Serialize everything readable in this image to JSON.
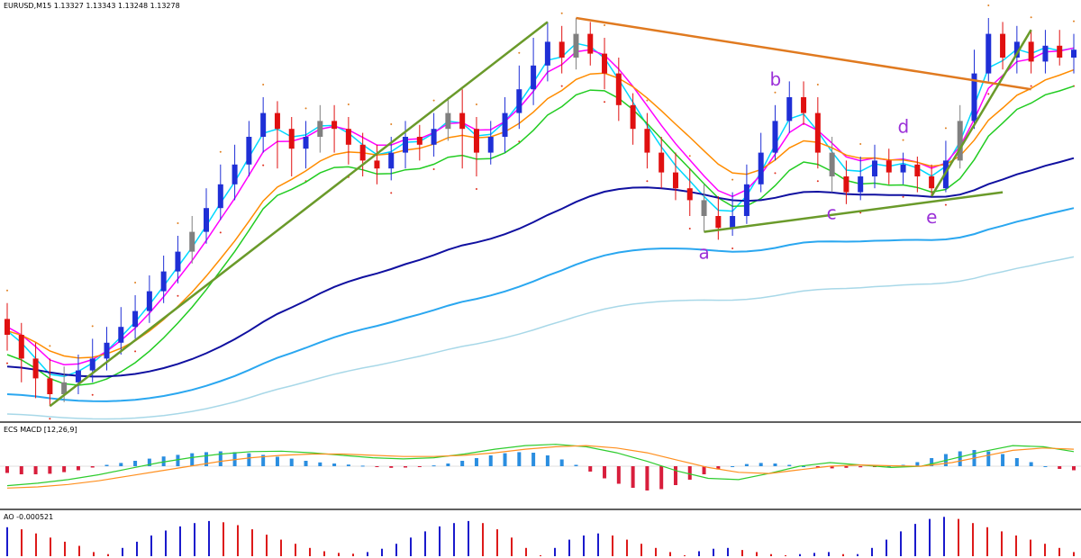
{
  "header": {
    "symbol_line": "EURUSD,M15 1.13327 1.13343 1.13248 1.13278"
  },
  "panes": {
    "macd_label": "ECS MACD [12,26,9]",
    "ao_label": "AO -0.000521"
  },
  "wave_labels": [
    "a",
    "b",
    "c",
    "d",
    "e"
  ],
  "colors": {
    "bull_candle": "#1f2fd6",
    "bear_candle": "#e01010",
    "neutral_candle": "#808080",
    "ema_cyan": "#00d8ff",
    "ema_magenta": "#ff00ff",
    "ema_green": "#22cc22",
    "ema_orange": "#ff8c00",
    "ema_navy": "#1010a0",
    "ema_lightblue": "#2aa7f0",
    "ema_pale": "#a8d8e8",
    "trendline_green": "#6a9a2a",
    "trendline_orange": "#e07a20",
    "macd_pos": "#2a8ee0",
    "macd_neg": "#d81e3c",
    "macd_fast": "#2ecc2e",
    "macd_slow": "#ff9020",
    "ao_up": "#1a1acc",
    "ao_down": "#dd1a1a",
    "wave_label": "#9b30d8"
  },
  "chart_data": [
    {
      "type": "candlestick",
      "title": "EURUSD,M15",
      "ohlc_last": {
        "open": 1.13327,
        "high": 1.13343,
        "low": 1.13248,
        "close": 1.13278
      },
      "candles": [
        {
          "o": 0.24,
          "c": 0.2,
          "h": 0.28,
          "l": 0.16
        },
        {
          "o": 0.2,
          "c": 0.14,
          "h": 0.23,
          "l": 0.08
        },
        {
          "o": 0.14,
          "c": 0.09,
          "h": 0.18,
          "l": 0.04
        },
        {
          "o": 0.09,
          "c": 0.05,
          "h": 0.14,
          "l": 0.02
        },
        {
          "o": 0.05,
          "c": 0.08,
          "h": 0.12,
          "l": 0.03
        },
        {
          "o": 0.08,
          "c": 0.11,
          "h": 0.15,
          "l": 0.05
        },
        {
          "o": 0.11,
          "c": 0.14,
          "h": 0.19,
          "l": 0.08
        },
        {
          "o": 0.14,
          "c": 0.18,
          "h": 0.22,
          "l": 0.11
        },
        {
          "o": 0.18,
          "c": 0.22,
          "h": 0.27,
          "l": 0.15
        },
        {
          "o": 0.22,
          "c": 0.26,
          "h": 0.3,
          "l": 0.19
        },
        {
          "o": 0.26,
          "c": 0.31,
          "h": 0.35,
          "l": 0.23
        },
        {
          "o": 0.31,
          "c": 0.36,
          "h": 0.4,
          "l": 0.28
        },
        {
          "o": 0.36,
          "c": 0.41,
          "h": 0.45,
          "l": 0.33
        },
        {
          "o": 0.41,
          "c": 0.46,
          "h": 0.5,
          "l": 0.38
        },
        {
          "o": 0.46,
          "c": 0.52,
          "h": 0.57,
          "l": 0.43
        },
        {
          "o": 0.52,
          "c": 0.58,
          "h": 0.63,
          "l": 0.49
        },
        {
          "o": 0.58,
          "c": 0.63,
          "h": 0.68,
          "l": 0.54
        },
        {
          "o": 0.63,
          "c": 0.7,
          "h": 0.74,
          "l": 0.6
        },
        {
          "o": 0.7,
          "c": 0.76,
          "h": 0.8,
          "l": 0.66
        },
        {
          "o": 0.76,
          "c": 0.72,
          "h": 0.79,
          "l": 0.62
        },
        {
          "o": 0.72,
          "c": 0.67,
          "h": 0.75,
          "l": 0.6
        },
        {
          "o": 0.67,
          "c": 0.7,
          "h": 0.74,
          "l": 0.62
        },
        {
          "o": 0.7,
          "c": 0.74,
          "h": 0.78,
          "l": 0.66
        },
        {
          "o": 0.74,
          "c": 0.72,
          "h": 0.78,
          "l": 0.66
        },
        {
          "o": 0.72,
          "c": 0.68,
          "h": 0.75,
          "l": 0.63
        },
        {
          "o": 0.68,
          "c": 0.64,
          "h": 0.71,
          "l": 0.6
        },
        {
          "o": 0.64,
          "c": 0.62,
          "h": 0.68,
          "l": 0.58
        },
        {
          "o": 0.62,
          "c": 0.66,
          "h": 0.7,
          "l": 0.59
        },
        {
          "o": 0.66,
          "c": 0.7,
          "h": 0.74,
          "l": 0.62
        },
        {
          "o": 0.7,
          "c": 0.68,
          "h": 0.73,
          "l": 0.64
        },
        {
          "o": 0.68,
          "c": 0.72,
          "h": 0.76,
          "l": 0.65
        },
        {
          "o": 0.72,
          "c": 0.76,
          "h": 0.8,
          "l": 0.69
        },
        {
          "o": 0.76,
          "c": 0.72,
          "h": 0.82,
          "l": 0.62
        },
        {
          "o": 0.72,
          "c": 0.66,
          "h": 0.75,
          "l": 0.6
        },
        {
          "o": 0.66,
          "c": 0.7,
          "h": 0.74,
          "l": 0.63
        },
        {
          "o": 0.7,
          "c": 0.76,
          "h": 0.8,
          "l": 0.66
        },
        {
          "o": 0.76,
          "c": 0.82,
          "h": 0.88,
          "l": 0.72
        },
        {
          "o": 0.82,
          "c": 0.88,
          "h": 0.95,
          "l": 0.78
        },
        {
          "o": 0.88,
          "c": 0.94,
          "h": 0.99,
          "l": 0.84
        },
        {
          "o": 0.94,
          "c": 0.9,
          "h": 0.98,
          "l": 0.86
        },
        {
          "o": 0.9,
          "c": 0.96,
          "h": 1.0,
          "l": 0.87
        },
        {
          "o": 0.96,
          "c": 0.91,
          "h": 0.99,
          "l": 0.88
        },
        {
          "o": 0.91,
          "c": 0.86,
          "h": 0.95,
          "l": 0.82
        },
        {
          "o": 0.86,
          "c": 0.78,
          "h": 0.9,
          "l": 0.74
        },
        {
          "o": 0.78,
          "c": 0.72,
          "h": 0.81,
          "l": 0.68
        },
        {
          "o": 0.72,
          "c": 0.66,
          "h": 0.76,
          "l": 0.62
        },
        {
          "o": 0.66,
          "c": 0.61,
          "h": 0.7,
          "l": 0.57
        },
        {
          "o": 0.61,
          "c": 0.57,
          "h": 0.66,
          "l": 0.54
        },
        {
          "o": 0.57,
          "c": 0.54,
          "h": 0.62,
          "l": 0.5
        },
        {
          "o": 0.54,
          "c": 0.5,
          "h": 0.58,
          "l": 0.46
        },
        {
          "o": 0.5,
          "c": 0.47,
          "h": 0.55,
          "l": 0.44
        },
        {
          "o": 0.47,
          "c": 0.5,
          "h": 0.56,
          "l": 0.45
        },
        {
          "o": 0.5,
          "c": 0.58,
          "h": 0.63,
          "l": 0.48
        },
        {
          "o": 0.58,
          "c": 0.66,
          "h": 0.71,
          "l": 0.56
        },
        {
          "o": 0.66,
          "c": 0.74,
          "h": 0.78,
          "l": 0.64
        },
        {
          "o": 0.74,
          "c": 0.8,
          "h": 0.84,
          "l": 0.71
        },
        {
          "o": 0.8,
          "c": 0.76,
          "h": 0.84,
          "l": 0.73
        },
        {
          "o": 0.76,
          "c": 0.66,
          "h": 0.8,
          "l": 0.62
        },
        {
          "o": 0.66,
          "c": 0.6,
          "h": 0.7,
          "l": 0.56
        },
        {
          "o": 0.6,
          "c": 0.56,
          "h": 0.64,
          "l": 0.53
        },
        {
          "o": 0.56,
          "c": 0.6,
          "h": 0.65,
          "l": 0.54
        },
        {
          "o": 0.6,
          "c": 0.64,
          "h": 0.68,
          "l": 0.57
        },
        {
          "o": 0.64,
          "c": 0.61,
          "h": 0.67,
          "l": 0.58
        },
        {
          "o": 0.61,
          "c": 0.63,
          "h": 0.66,
          "l": 0.58
        },
        {
          "o": 0.63,
          "c": 0.6,
          "h": 0.65,
          "l": 0.56
        },
        {
          "o": 0.6,
          "c": 0.57,
          "h": 0.63,
          "l": 0.55
        },
        {
          "o": 0.57,
          "c": 0.64,
          "h": 0.69,
          "l": 0.56
        },
        {
          "o": 0.64,
          "c": 0.74,
          "h": 0.78,
          "l": 0.62
        },
        {
          "o": 0.74,
          "c": 0.86,
          "h": 0.92,
          "l": 0.72
        },
        {
          "o": 0.86,
          "c": 0.96,
          "h": 1.0,
          "l": 0.84
        },
        {
          "o": 0.96,
          "c": 0.9,
          "h": 0.99,
          "l": 0.87
        },
        {
          "o": 0.9,
          "c": 0.94,
          "h": 0.98,
          "l": 0.86
        },
        {
          "o": 0.94,
          "c": 0.89,
          "h": 0.97,
          "l": 0.86
        },
        {
          "o": 0.89,
          "c": 0.93,
          "h": 0.97,
          "l": 0.86
        },
        {
          "o": 0.93,
          "c": 0.9,
          "h": 0.97,
          "l": 0.88
        },
        {
          "o": 0.9,
          "c": 0.92,
          "h": 0.96,
          "l": 0.86
        }
      ],
      "price_range": [
        0,
        1
      ],
      "waves": [
        {
          "label": "a",
          "bar": 49
        },
        {
          "label": "b",
          "bar": 54
        },
        {
          "label": "c",
          "bar": 58
        },
        {
          "label": "d",
          "bar": 63
        },
        {
          "label": "e",
          "bar": 65
        }
      ]
    },
    {
      "type": "bar",
      "title": "ECS MACD [12,26,9]",
      "values": [
        -0.25,
        -0.3,
        -0.3,
        -0.28,
        -0.22,
        -0.15,
        -0.05,
        0.05,
        0.12,
        0.2,
        0.28,
        0.36,
        0.42,
        0.48,
        0.52,
        0.55,
        0.52,
        0.48,
        0.42,
        0.35,
        0.28,
        0.2,
        0.14,
        0.1,
        0.06,
        0.02,
        -0.02,
        -0.06,
        -0.05,
        -0.02,
        0.03,
        0.1,
        0.2,
        0.3,
        0.4,
        0.48,
        0.52,
        0.5,
        0.4,
        0.25,
        0.05,
        -0.2,
        -0.45,
        -0.65,
        -0.8,
        -0.9,
        -0.85,
        -0.7,
        -0.5,
        -0.3,
        -0.12,
        0.0,
        0.08,
        0.12,
        0.1,
        0.05,
        0.0,
        -0.05,
        -0.08,
        -0.06,
        -0.04,
        -0.02,
        0.0,
        0.05,
        0.15,
        0.3,
        0.45,
        0.55,
        0.6,
        0.55,
        0.45,
        0.3,
        0.15,
        0.0,
        -0.1,
        -0.15
      ],
      "series": [
        {
          "name": "fast",
          "values": [
            -0.8,
            -0.7,
            -0.55,
            -0.35,
            -0.1,
            0.15,
            0.35,
            0.5,
            0.6,
            0.62,
            0.55,
            0.45,
            0.35,
            0.3,
            0.35,
            0.5,
            0.7,
            0.85,
            0.9,
            0.8,
            0.55,
            0.2,
            -0.2,
            -0.5,
            -0.55,
            -0.3,
            0.0,
            0.15,
            0.05,
            -0.05,
            0.0,
            0.3,
            0.6,
            0.85,
            0.8,
            0.6
          ]
        },
        {
          "name": "slow",
          "values": [
            -0.9,
            -0.85,
            -0.75,
            -0.6,
            -0.4,
            -0.2,
            0.0,
            0.2,
            0.35,
            0.45,
            0.5,
            0.5,
            0.45,
            0.4,
            0.4,
            0.45,
            0.55,
            0.7,
            0.8,
            0.85,
            0.75,
            0.55,
            0.25,
            -0.05,
            -0.25,
            -0.3,
            -0.15,
            0.0,
            0.05,
            0.02,
            0.0,
            0.15,
            0.4,
            0.65,
            0.75,
            0.7
          ]
        }
      ]
    },
    {
      "type": "bar",
      "title": "AO -0.000521",
      "values": [
        -0.7,
        -0.65,
        -0.55,
        -0.45,
        -0.35,
        -0.25,
        -0.1,
        0.05,
        0.2,
        0.35,
        0.5,
        0.62,
        0.72,
        0.8,
        0.85,
        0.82,
        0.75,
        0.65,
        0.52,
        0.4,
        0.3,
        0.2,
        0.12,
        0.08,
        0.06,
        0.1,
        0.18,
        0.3,
        0.45,
        0.6,
        0.72,
        0.8,
        0.85,
        0.8,
        0.65,
        0.45,
        0.2,
        0.0,
        -0.2,
        -0.4,
        -0.5,
        -0.55,
        -0.5,
        -0.4,
        -0.3,
        -0.2,
        -0.1,
        0.02,
        0.12,
        0.18,
        0.2,
        0.15,
        0.1,
        0.05,
        0.0,
        -0.05,
        -0.08,
        -0.1,
        -0.05,
        0.05,
        0.2,
        0.4,
        0.6,
        0.78,
        0.9,
        0.95,
        0.9,
        0.8,
        0.7,
        0.6,
        0.5,
        0.4,
        0.3,
        0.2,
        0.1
      ]
    }
  ]
}
